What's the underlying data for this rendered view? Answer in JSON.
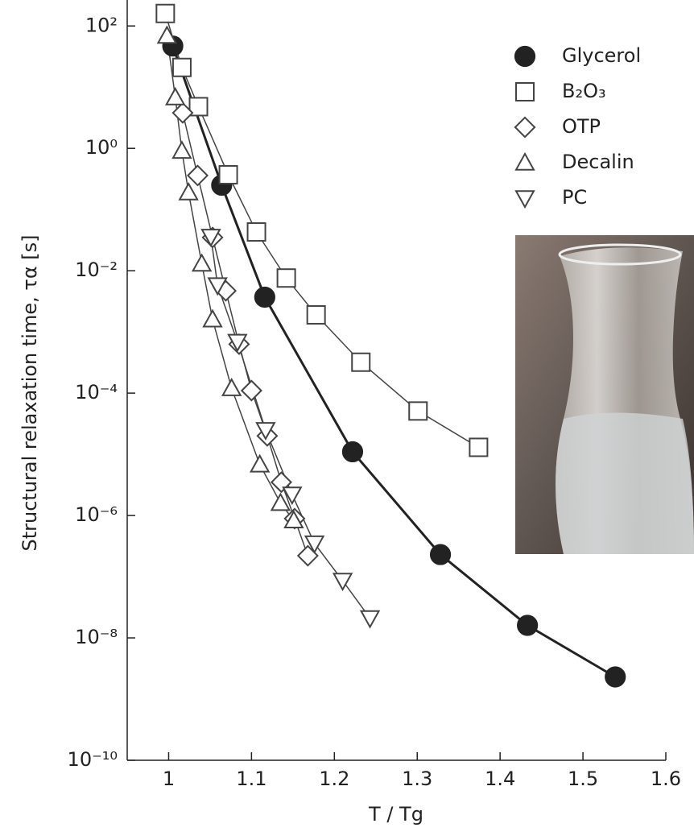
{
  "chart_data": {
    "type": "line",
    "xlabel": "T / Tg",
    "ylabel": "Structural relaxation time, τα [s]",
    "xlim": [
      0.95,
      1.6
    ],
    "xticks": [
      1,
      1.1,
      1.2,
      1.3,
      1.4,
      1.5,
      1.6
    ],
    "ylim": [
      1e-10,
      300
    ],
    "yscale": "log",
    "yticks": [
      {
        "value": 1e-10,
        "label": "10⁻¹⁰"
      },
      {
        "value": 1e-08,
        "label": "10⁻⁸"
      },
      {
        "value": 1e-06,
        "label": "10⁻⁶"
      },
      {
        "value": 0.0001,
        "label": "10⁻⁴"
      },
      {
        "value": 0.01,
        "label": "10⁻²"
      },
      {
        "value": 1,
        "label": "10⁰"
      },
      {
        "value": 100,
        "label": "10²"
      }
    ],
    "legend": "upper right",
    "series": [
      {
        "name": "Glycerol",
        "color": "#222222",
        "marker": "circle",
        "filled": true,
        "x": [
          1.005,
          1.064,
          1.116,
          1.222,
          1.328,
          1.433,
          1.539
        ],
        "values": [
          47,
          0.25,
          0.0037,
          1.1e-05,
          2.3e-07,
          1.6e-08,
          2.3e-09
        ]
      },
      {
        "name": "B₂O₃",
        "color": "#444444",
        "marker": "square",
        "filled": false,
        "x": [
          0.996,
          1.016,
          1.036,
          1.072,
          1.106,
          1.142,
          1.178,
          1.232,
          1.301,
          1.374
        ],
        "values": [
          160,
          21,
          4.8,
          0.37,
          0.043,
          0.0076,
          0.0019,
          0.00032,
          5.1e-05,
          1.3e-05
        ]
      },
      {
        "name": "OTP",
        "color": "#444444",
        "marker": "diamond",
        "filled": false,
        "x": [
          1.017,
          1.035,
          1.053,
          1.069,
          1.085,
          1.1,
          1.119,
          1.136,
          1.152,
          1.168
        ],
        "values": [
          3.8,
          0.36,
          0.035,
          0.0047,
          0.00063,
          0.00011,
          2e-05,
          3.5e-06,
          8.9e-07,
          2.2e-07
        ]
      },
      {
        "name": "Decalin",
        "color": "#444444",
        "marker": "triangle-up",
        "filled": false,
        "x": [
          0.998,
          1.008,
          1.016,
          1.024,
          1.04,
          1.053,
          1.076,
          1.11,
          1.135,
          1.151
        ],
        "values": [
          69,
          6.8,
          0.91,
          0.19,
          0.013,
          0.0016,
          0.00012,
          6.8e-06,
          1.6e-06,
          8.3e-07
        ]
      },
      {
        "name": "PC",
        "color": "#444444",
        "marker": "triangle-down",
        "filled": false,
        "x": [
          1.051,
          1.059,
          1.083,
          1.117,
          1.149,
          1.176,
          1.21,
          1.243
        ],
        "values": [
          0.036,
          0.0058,
          0.00069,
          2.5e-05,
          2.2e-06,
          3.5e-07,
          8.6e-08,
          2.1e-08
        ]
      }
    ]
  }
}
